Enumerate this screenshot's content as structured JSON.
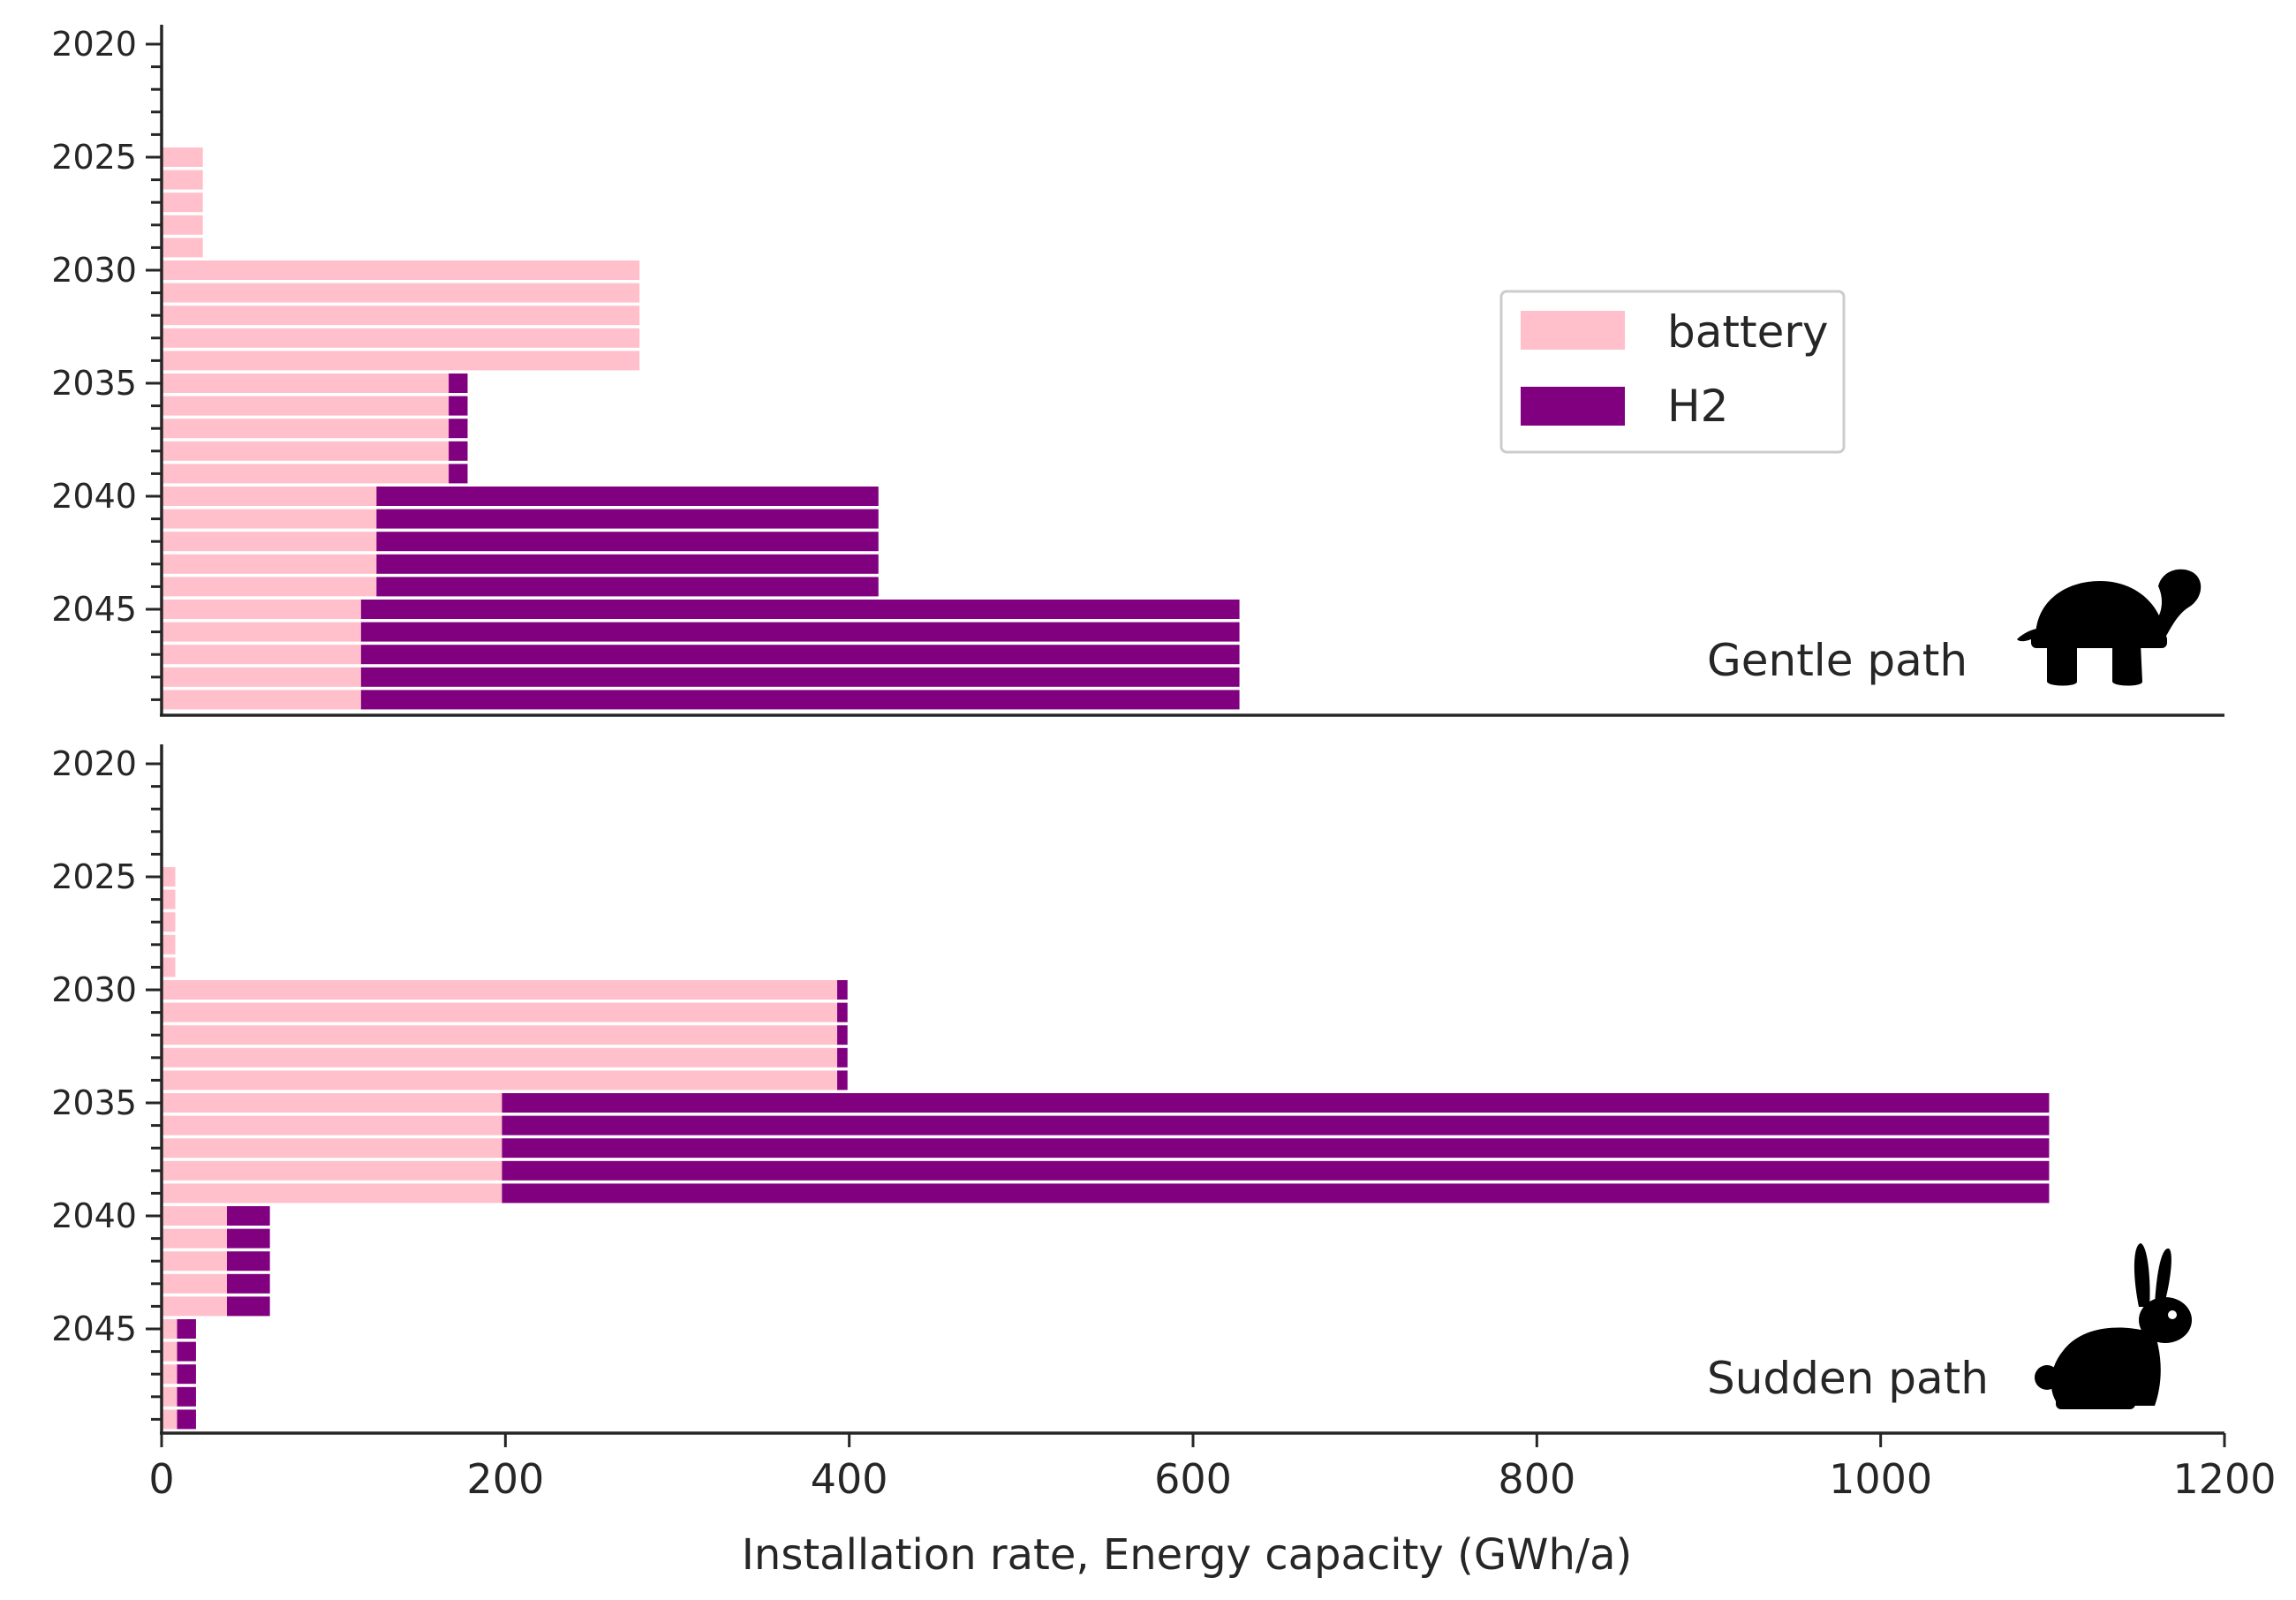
{
  "chart_data": [
    {
      "type": "bar",
      "orientation": "horizontal",
      "stacked": true,
      "panel": "top",
      "annotation": "Gentle path",
      "annotation_icon": "turtle-icon",
      "years": [
        2020,
        2021,
        2022,
        2023,
        2024,
        2025,
        2026,
        2027,
        2028,
        2029,
        2030,
        2031,
        2032,
        2033,
        2034,
        2035,
        2036,
        2037,
        2038,
        2039,
        2040,
        2041,
        2042,
        2043,
        2044,
        2045,
        2046,
        2047,
        2048,
        2049
      ],
      "ytick_labels": [
        "2020",
        "2025",
        "2030",
        "2035",
        "2040",
        "2045"
      ],
      "series": [
        {
          "name": "battery",
          "color": "#ffc0cb",
          "values": [
            0,
            0,
            0,
            0,
            0,
            24,
            24,
            24,
            24,
            24,
            278,
            278,
            278,
            278,
            278,
            167,
            167,
            167,
            167,
            167,
            125,
            125,
            125,
            125,
            125,
            116,
            116,
            116,
            116,
            116
          ]
        },
        {
          "name": "H2",
          "color": "#800080",
          "values": [
            0,
            0,
            0,
            0,
            0,
            0,
            0,
            0,
            0,
            0,
            0,
            0,
            0,
            0,
            0,
            11,
            11,
            11,
            11,
            11,
            292,
            292,
            292,
            292,
            292,
            511,
            511,
            511,
            511,
            511
          ]
        }
      ],
      "xlim": [
        0,
        1200
      ]
    },
    {
      "type": "bar",
      "orientation": "horizontal",
      "stacked": true,
      "panel": "bottom",
      "annotation": "Sudden path",
      "annotation_icon": "rabbit-icon",
      "years": [
        2020,
        2021,
        2022,
        2023,
        2024,
        2025,
        2026,
        2027,
        2028,
        2029,
        2030,
        2031,
        2032,
        2033,
        2034,
        2035,
        2036,
        2037,
        2038,
        2039,
        2040,
        2041,
        2042,
        2043,
        2044,
        2045,
        2046,
        2047,
        2048,
        2049
      ],
      "ytick_labels": [
        "2020",
        "2025",
        "2030",
        "2035",
        "2040",
        "2045"
      ],
      "series": [
        {
          "name": "battery",
          "color": "#ffc0cb",
          "values": [
            0,
            0,
            0,
            0,
            0,
            8,
            8,
            8,
            8,
            8,
            393,
            393,
            393,
            393,
            393,
            198,
            198,
            198,
            198,
            198,
            38,
            38,
            38,
            38,
            38,
            9,
            9,
            9,
            9,
            9
          ]
        },
        {
          "name": "H2",
          "color": "#800080",
          "values": [
            0,
            0,
            0,
            0,
            0,
            0,
            0,
            0,
            0,
            0,
            6,
            6,
            6,
            6,
            6,
            900,
            900,
            900,
            900,
            900,
            25,
            25,
            25,
            25,
            25,
            11,
            11,
            11,
            11,
            11
          ]
        }
      ],
      "xlim": [
        0,
        1200
      ],
      "xticks": [
        "0",
        "200",
        "400",
        "600",
        "800",
        "1000",
        "1200"
      ],
      "xlabel": "Installation rate, Energy capacity (GWh/a)"
    }
  ],
  "legend": {
    "placement": "upper-right of top panel",
    "entries": [
      {
        "label": "battery",
        "color": "#ffc0cb"
      },
      {
        "label": "H2",
        "color": "#800080"
      }
    ]
  }
}
